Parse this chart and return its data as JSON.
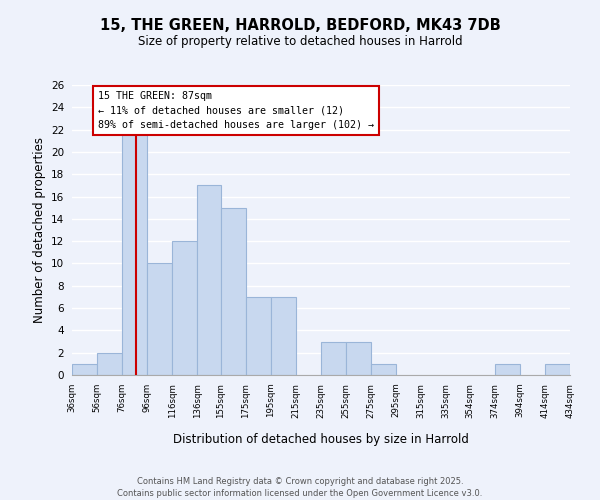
{
  "title": "15, THE GREEN, HARROLD, BEDFORD, MK43 7DB",
  "subtitle": "Size of property relative to detached houses in Harrold",
  "xlabel": "Distribution of detached houses by size in Harrold",
  "ylabel": "Number of detached properties",
  "bar_color": "#c8d8ef",
  "bar_edge_color": "#9ab5d8",
  "background_color": "#eef2fb",
  "grid_color": "#ffffff",
  "annotation_box_color": "#ffffff",
  "annotation_box_edge": "#cc0000",
  "vline_color": "#cc0000",
  "vline_x": 87,
  "annotation_text_line1": "15 THE GREEN: 87sqm",
  "annotation_text_line2": "← 11% of detached houses are smaller (12)",
  "annotation_text_line3": "89% of semi-detached houses are larger (102) →",
  "footer_line1": "Contains HM Land Registry data © Crown copyright and database right 2025.",
  "footer_line2": "Contains public sector information licensed under the Open Government Licence v3.0.",
  "bin_edges": [
    36,
    56,
    76,
    96,
    116,
    136,
    155,
    175,
    195,
    215,
    235,
    255,
    275,
    295,
    315,
    335,
    354,
    374,
    394,
    414,
    434
  ],
  "bin_labels": [
    "36sqm",
    "56sqm",
    "76sqm",
    "96sqm",
    "116sqm",
    "136sqm",
    "155sqm",
    "175sqm",
    "195sqm",
    "215sqm",
    "235sqm",
    "255sqm",
    "275sqm",
    "295sqm",
    "315sqm",
    "335sqm",
    "354sqm",
    "374sqm",
    "394sqm",
    "414sqm",
    "434sqm"
  ],
  "counts": [
    1,
    2,
    22,
    10,
    12,
    17,
    15,
    7,
    7,
    0,
    3,
    3,
    1,
    0,
    0,
    0,
    0,
    1,
    0,
    1
  ],
  "ylim": [
    0,
    26
  ],
  "yticks": [
    0,
    2,
    4,
    6,
    8,
    10,
    12,
    14,
    16,
    18,
    20,
    22,
    24,
    26
  ]
}
